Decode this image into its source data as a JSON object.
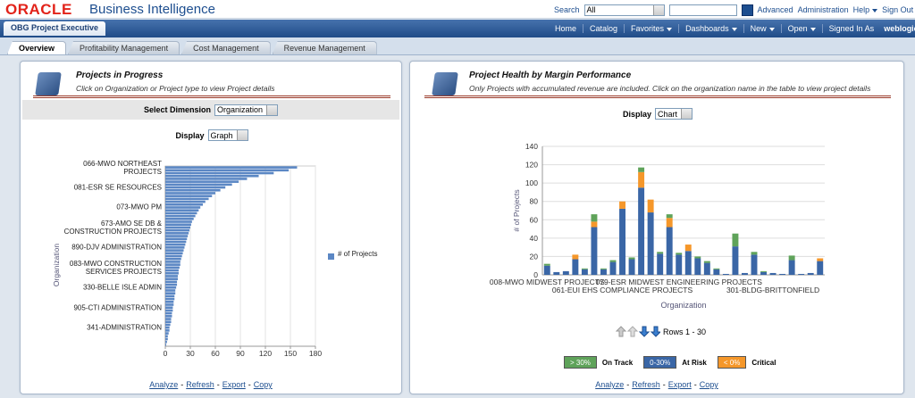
{
  "header": {
    "logo": "ORACLE",
    "product": "Business Intelligence",
    "search_label": "Search",
    "search_scope": "All",
    "links": [
      "Advanced",
      "Administration",
      "Help",
      "Sign Out"
    ]
  },
  "nav": {
    "dashboard": "OBG Project Executive",
    "items": [
      "Home",
      "Catalog",
      "Favorites",
      "Dashboards",
      "New",
      "Open"
    ],
    "signed_in_label": "Signed In As",
    "user": "weblogic"
  },
  "tabs": [
    "Overview",
    "Profitability Management",
    "Cost Management",
    "Revenue Management"
  ],
  "left": {
    "title": "Projects in Progress",
    "subtitle": "Click on Organization or Project type to view Project details",
    "dimension_label": "Select Dimension",
    "dimension": "Organization",
    "display_label": "Display",
    "display": "Graph",
    "chart": {
      "type": "hbar",
      "y_label": "Organization",
      "categories": [
        "066-MWO NORTHEAST PROJECTS",
        null,
        null,
        null,
        null,
        null,
        null,
        "081-ESR SE RESOURCES",
        null,
        null,
        null,
        null,
        null,
        null,
        "073-MWO PM",
        null,
        null,
        null,
        null,
        null,
        null,
        "673-AMO SE DB & CONSTRUCTION PROJECTS",
        null,
        null,
        null,
        null,
        null,
        null,
        "890-DJV ADMINISTRATION",
        null,
        null,
        null,
        null,
        null,
        null,
        "083-MWO CONSTRUCTION SERVICES PROJECTS",
        null,
        null,
        null,
        null,
        null,
        null,
        "330-BELLE ISLE ADMIN",
        null,
        null,
        null,
        null,
        null,
        null,
        "905-CTI ADMINISTRATION",
        null,
        null,
        null,
        null,
        null,
        null,
        "341-ADMINISTRATION",
        null,
        null,
        null,
        null,
        null,
        null
      ],
      "series": [
        {
          "name": "# of Projects",
          "color": "#5b87c4",
          "values": [
            158,
            148,
            130,
            112,
            98,
            88,
            80,
            72,
            66,
            60,
            56,
            52,
            48,
            45,
            42,
            40,
            38,
            36,
            34,
            32,
            31,
            30,
            29,
            28,
            27,
            26,
            25,
            24,
            23,
            22,
            21,
            20,
            19,
            18,
            18,
            17,
            16,
            16,
            15,
            15,
            14,
            14,
            13,
            12,
            12,
            11,
            11,
            10,
            10,
            9,
            9,
            8,
            8,
            7,
            7,
            6,
            5,
            5,
            4,
            3,
            3,
            2,
            1
          ]
        }
      ],
      "xlim": [
        0,
        180
      ],
      "xticks": [
        0,
        30,
        60,
        90,
        120,
        150,
        180
      ],
      "grid": true
    },
    "actions": [
      "Analyze",
      "Refresh",
      "Export",
      "Copy"
    ],
    "separator": "-"
  },
  "right": {
    "title": "Project Health by Margin Performance",
    "subtitle": "Only Projects with accumulated revenue are included. Click on the organization name in the table to view project details",
    "display_label": "Display",
    "display": "Chart",
    "chart": {
      "type": "stacked_bar",
      "y_label": "# of Projects",
      "x_label": "Organization",
      "categories": [
        "008-MWO MIDWEST PROJECTS",
        null,
        null,
        null,
        null,
        null,
        null,
        null,
        "061-EUI EHS COMPLIANCE PROJECTS",
        null,
        null,
        null,
        null,
        null,
        "079-ESR MIDWEST ENGINEERING PROJECTS",
        null,
        null,
        null,
        null,
        null,
        null,
        null,
        null,
        null,
        "301-BLDG-BRITTONFIELD",
        null,
        null,
        null,
        null,
        null
      ],
      "series": [
        {
          "name": "At Risk",
          "range": "0-30%",
          "color": "#3a66a6",
          "values": [
            10,
            3,
            4,
            17,
            6,
            52,
            6,
            14,
            72,
            17,
            95,
            68,
            23,
            52,
            22,
            26,
            18,
            13,
            6,
            1,
            31,
            2,
            22,
            3,
            2,
            1,
            16,
            1,
            2,
            15
          ]
        },
        {
          "name": "Critical",
          "range": "< 0%",
          "color": "#f5972a",
          "values": [
            0,
            0,
            0,
            5,
            0,
            6,
            0,
            0,
            8,
            0,
            17,
            14,
            0,
            10,
            0,
            7,
            0,
            0,
            0,
            0,
            0,
            0,
            0,
            0,
            0,
            0,
            0,
            0,
            0,
            3
          ]
        },
        {
          "name": "On Track",
          "range": "> 30%",
          "color": "#5fa35a",
          "values": [
            2,
            0,
            0,
            0,
            1,
            8,
            1,
            2,
            0,
            2,
            5,
            0,
            2,
            4,
            2,
            0,
            2,
            2,
            1,
            0,
            14,
            0,
            3,
            1,
            0,
            0,
            5,
            0,
            0,
            0
          ]
        }
      ],
      "legend_order": [
        2,
        0,
        1
      ],
      "ylim": [
        0,
        140
      ],
      "yticks": [
        0,
        20,
        40,
        60,
        80,
        100,
        120,
        140
      ],
      "grid": true
    },
    "pager": "Rows 1 - 30",
    "actions": [
      "Analyze",
      "Refresh",
      "Export",
      "Copy"
    ],
    "separator": "-"
  }
}
